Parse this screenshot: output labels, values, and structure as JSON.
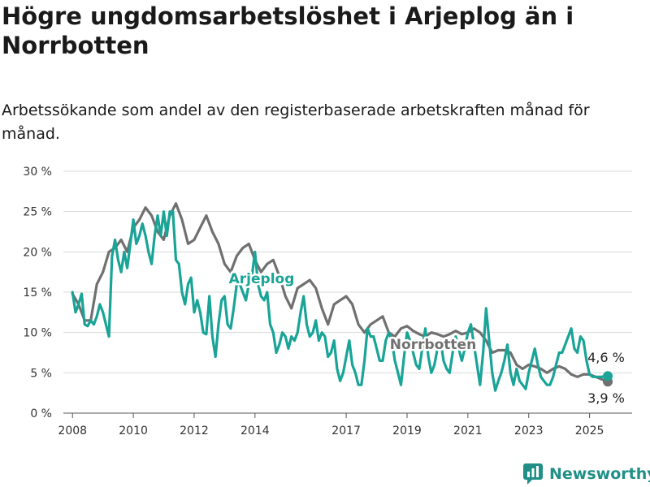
{
  "header": {
    "title": "Högre ungdomsarbetslöshet i Arjeplog än i Norrbotten",
    "subtitle": "Arbetssökande som andel av den registerbaserade arbetskraften månad för månad."
  },
  "brand": {
    "name": "Newsworthy",
    "icon": "bar-chart-logo-icon",
    "color": "#1f8f87"
  },
  "chart_data": {
    "type": "line",
    "x_unit": "year (decimal)",
    "xlim": [
      2007.7,
      2026.4
    ],
    "ylim": [
      0,
      30
    ],
    "grid": true,
    "y_ticks": [
      {
        "value": 0,
        "label": "0 %"
      },
      {
        "value": 5,
        "label": "5 %"
      },
      {
        "value": 10,
        "label": "10 %"
      },
      {
        "value": 15,
        "label": "15 %"
      },
      {
        "value": 20,
        "label": "20 %"
      },
      {
        "value": 25,
        "label": "25 %"
      },
      {
        "value": 30,
        "label": "30 %"
      }
    ],
    "x_ticks": [
      {
        "value": 2008,
        "label": "2008"
      },
      {
        "value": 2010,
        "label": "2010"
      },
      {
        "value": 2012,
        "label": "2012"
      },
      {
        "value": 2014,
        "label": "2014"
      },
      {
        "value": 2017,
        "label": "2017"
      },
      {
        "value": 2019,
        "label": "2019"
      },
      {
        "value": 2021,
        "label": "2021"
      },
      {
        "value": 2023,
        "label": "2023"
      },
      {
        "value": 2025,
        "label": "2025"
      }
    ],
    "series": [
      {
        "name": "Norrbotten",
        "color": "#707070",
        "end_label": "3,9 %",
        "points": [
          [
            2008.0,
            14.8
          ],
          [
            2008.2,
            13.5
          ],
          [
            2008.4,
            11.5
          ],
          [
            2008.6,
            11.5
          ],
          [
            2008.8,
            16.0
          ],
          [
            2009.0,
            17.5
          ],
          [
            2009.2,
            20.0
          ],
          [
            2009.4,
            20.5
          ],
          [
            2009.6,
            21.5
          ],
          [
            2009.8,
            20.0
          ],
          [
            2010.0,
            23.0
          ],
          [
            2010.2,
            24.0
          ],
          [
            2010.4,
            25.5
          ],
          [
            2010.6,
            24.5
          ],
          [
            2010.8,
            22.5
          ],
          [
            2011.0,
            21.5
          ],
          [
            2011.2,
            24.5
          ],
          [
            2011.4,
            26.0
          ],
          [
            2011.6,
            24.0
          ],
          [
            2011.8,
            21.0
          ],
          [
            2012.0,
            21.5
          ],
          [
            2012.2,
            23.0
          ],
          [
            2012.4,
            24.5
          ],
          [
            2012.6,
            22.5
          ],
          [
            2012.8,
            21.0
          ],
          [
            2013.0,
            18.5
          ],
          [
            2013.2,
            17.5
          ],
          [
            2013.4,
            19.5
          ],
          [
            2013.6,
            20.5
          ],
          [
            2013.8,
            21.0
          ],
          [
            2014.0,
            19.0
          ],
          [
            2014.2,
            17.5
          ],
          [
            2014.4,
            18.5
          ],
          [
            2014.6,
            19.0
          ],
          [
            2014.8,
            17.0
          ],
          [
            2015.0,
            14.5
          ],
          [
            2015.2,
            13.0
          ],
          [
            2015.4,
            15.5
          ],
          [
            2015.6,
            16.0
          ],
          [
            2015.8,
            16.5
          ],
          [
            2016.0,
            15.5
          ],
          [
            2016.2,
            13.0
          ],
          [
            2016.4,
            11.0
          ],
          [
            2016.6,
            13.5
          ],
          [
            2016.8,
            14.0
          ],
          [
            2017.0,
            14.5
          ],
          [
            2017.2,
            13.5
          ],
          [
            2017.4,
            11.0
          ],
          [
            2017.6,
            10.0
          ],
          [
            2017.8,
            11.0
          ],
          [
            2018.0,
            11.5
          ],
          [
            2018.2,
            12.0
          ],
          [
            2018.4,
            10.0
          ],
          [
            2018.6,
            9.5
          ],
          [
            2018.8,
            10.5
          ],
          [
            2019.0,
            10.8
          ],
          [
            2019.2,
            10.2
          ],
          [
            2019.4,
            9.8
          ],
          [
            2019.6,
            9.5
          ],
          [
            2019.8,
            10.0
          ],
          [
            2020.0,
            9.8
          ],
          [
            2020.2,
            9.5
          ],
          [
            2020.4,
            9.8
          ],
          [
            2020.6,
            10.2
          ],
          [
            2020.8,
            9.8
          ],
          [
            2021.0,
            10.0
          ],
          [
            2021.2,
            10.5
          ],
          [
            2021.4,
            10.0
          ],
          [
            2021.6,
            9.0
          ],
          [
            2021.8,
            7.5
          ],
          [
            2022.0,
            7.8
          ],
          [
            2022.2,
            7.8
          ],
          [
            2022.4,
            7.5
          ],
          [
            2022.6,
            6.0
          ],
          [
            2022.8,
            5.5
          ],
          [
            2023.0,
            6.0
          ],
          [
            2023.2,
            5.8
          ],
          [
            2023.4,
            5.5
          ],
          [
            2023.6,
            5.0
          ],
          [
            2023.8,
            5.5
          ],
          [
            2024.0,
            5.8
          ],
          [
            2024.2,
            5.5
          ],
          [
            2024.4,
            4.8
          ],
          [
            2024.6,
            4.5
          ],
          [
            2024.8,
            4.8
          ],
          [
            2025.0,
            4.8
          ],
          [
            2025.2,
            4.5
          ],
          [
            2025.4,
            4.2
          ],
          [
            2025.6,
            3.9
          ]
        ]
      },
      {
        "name": "Arjeplog",
        "color": "#19a497",
        "end_label": "4,6 %",
        "points": [
          [
            2008.0,
            15.0
          ],
          [
            2008.1,
            12.5
          ],
          [
            2008.2,
            13.5
          ],
          [
            2008.3,
            14.8
          ],
          [
            2008.4,
            11.0
          ],
          [
            2008.5,
            10.8
          ],
          [
            2008.6,
            11.5
          ],
          [
            2008.7,
            11.0
          ],
          [
            2008.8,
            12.0
          ],
          [
            2008.9,
            13.5
          ],
          [
            2009.0,
            12.5
          ],
          [
            2009.1,
            11.0
          ],
          [
            2009.2,
            9.5
          ],
          [
            2009.3,
            19.5
          ],
          [
            2009.4,
            21.5
          ],
          [
            2009.5,
            19.0
          ],
          [
            2009.6,
            17.5
          ],
          [
            2009.7,
            20.0
          ],
          [
            2009.8,
            18.0
          ],
          [
            2009.9,
            21.0
          ],
          [
            2010.0,
            24.0
          ],
          [
            2010.1,
            21.0
          ],
          [
            2010.2,
            22.0
          ],
          [
            2010.3,
            23.5
          ],
          [
            2010.4,
            22.0
          ],
          [
            2010.5,
            20.0
          ],
          [
            2010.6,
            18.5
          ],
          [
            2010.7,
            22.0
          ],
          [
            2010.8,
            24.5
          ],
          [
            2010.9,
            22.0
          ],
          [
            2011.0,
            25.0
          ],
          [
            2011.1,
            22.0
          ],
          [
            2011.2,
            25.0
          ],
          [
            2011.3,
            25.0
          ],
          [
            2011.4,
            19.0
          ],
          [
            2011.5,
            18.5
          ],
          [
            2011.6,
            15.0
          ],
          [
            2011.7,
            13.5
          ],
          [
            2011.8,
            16.0
          ],
          [
            2011.9,
            16.8
          ],
          [
            2012.0,
            12.5
          ],
          [
            2012.1,
            14.0
          ],
          [
            2012.2,
            12.5
          ],
          [
            2012.3,
            10.0
          ],
          [
            2012.4,
            9.8
          ],
          [
            2012.5,
            14.5
          ],
          [
            2012.6,
            9.5
          ],
          [
            2012.7,
            7.0
          ],
          [
            2012.8,
            11.0
          ],
          [
            2012.9,
            14.0
          ],
          [
            2013.0,
            14.5
          ],
          [
            2013.1,
            11.0
          ],
          [
            2013.2,
            10.5
          ],
          [
            2013.3,
            13.0
          ],
          [
            2013.4,
            16.0
          ],
          [
            2013.5,
            16.0
          ],
          [
            2013.6,
            15.0
          ],
          [
            2013.7,
            14.0
          ],
          [
            2013.8,
            16.0
          ],
          [
            2013.9,
            17.0
          ],
          [
            2014.0,
            20.0
          ],
          [
            2014.1,
            16.0
          ],
          [
            2014.2,
            14.5
          ],
          [
            2014.3,
            14.0
          ],
          [
            2014.4,
            15.0
          ],
          [
            2014.5,
            11.0
          ],
          [
            2014.6,
            10.0
          ],
          [
            2014.7,
            7.5
          ],
          [
            2014.8,
            8.5
          ],
          [
            2014.9,
            10.0
          ],
          [
            2015.0,
            9.5
          ],
          [
            2015.1,
            8.0
          ],
          [
            2015.2,
            9.5
          ],
          [
            2015.3,
            9.0
          ],
          [
            2015.4,
            10.0
          ],
          [
            2015.5,
            12.5
          ],
          [
            2015.6,
            14.5
          ],
          [
            2015.7,
            11.0
          ],
          [
            2015.8,
            9.5
          ],
          [
            2015.9,
            10.0
          ],
          [
            2016.0,
            11.5
          ],
          [
            2016.1,
            9.0
          ],
          [
            2016.2,
            10.0
          ],
          [
            2016.3,
            9.5
          ],
          [
            2016.4,
            7.0
          ],
          [
            2016.5,
            7.5
          ],
          [
            2016.6,
            9.0
          ],
          [
            2016.7,
            5.5
          ],
          [
            2016.8,
            4.0
          ],
          [
            2016.9,
            5.0
          ],
          [
            2017.0,
            7.0
          ],
          [
            2017.1,
            9.0
          ],
          [
            2017.2,
            6.0
          ],
          [
            2017.3,
            5.0
          ],
          [
            2017.4,
            3.5
          ],
          [
            2017.5,
            3.5
          ],
          [
            2017.6,
            6.5
          ],
          [
            2017.7,
            10.5
          ],
          [
            2017.8,
            9.5
          ],
          [
            2017.9,
            9.5
          ],
          [
            2018.0,
            8.0
          ],
          [
            2018.1,
            6.5
          ],
          [
            2018.2,
            6.5
          ],
          [
            2018.3,
            9.0
          ],
          [
            2018.4,
            10.0
          ],
          [
            2018.5,
            9.0
          ],
          [
            2018.6,
            6.5
          ],
          [
            2018.7,
            5.0
          ],
          [
            2018.8,
            3.5
          ],
          [
            2018.9,
            7.0
          ],
          [
            2019.0,
            10.0
          ],
          [
            2019.1,
            9.0
          ],
          [
            2019.2,
            7.5
          ],
          [
            2019.3,
            6.0
          ],
          [
            2019.4,
            5.5
          ],
          [
            2019.5,
            8.0
          ],
          [
            2019.6,
            10.5
          ],
          [
            2019.7,
            7.0
          ],
          [
            2019.8,
            5.0
          ],
          [
            2019.9,
            6.0
          ],
          [
            2020.0,
            8.0
          ],
          [
            2020.1,
            9.0
          ],
          [
            2020.2,
            6.5
          ],
          [
            2020.3,
            5.5
          ],
          [
            2020.4,
            5.0
          ],
          [
            2020.5,
            7.5
          ],
          [
            2020.6,
            9.5
          ],
          [
            2020.7,
            8.0
          ],
          [
            2020.8,
            6.5
          ],
          [
            2020.9,
            8.0
          ],
          [
            2021.0,
            10.0
          ],
          [
            2021.1,
            11.0
          ],
          [
            2021.2,
            8.5
          ],
          [
            2021.3,
            6.0
          ],
          [
            2021.4,
            3.5
          ],
          [
            2021.5,
            7.5
          ],
          [
            2021.6,
            13.0
          ],
          [
            2021.7,
            9.0
          ],
          [
            2021.8,
            5.0
          ],
          [
            2021.9,
            2.8
          ],
          [
            2022.0,
            4.0
          ],
          [
            2022.1,
            5.0
          ],
          [
            2022.2,
            6.5
          ],
          [
            2022.3,
            8.5
          ],
          [
            2022.4,
            5.0
          ],
          [
            2022.5,
            3.5
          ],
          [
            2022.6,
            5.5
          ],
          [
            2022.7,
            4.0
          ],
          [
            2022.8,
            3.5
          ],
          [
            2022.9,
            3.0
          ],
          [
            2023.0,
            5.0
          ],
          [
            2023.1,
            6.5
          ],
          [
            2023.2,
            8.0
          ],
          [
            2023.3,
            6.0
          ],
          [
            2023.4,
            4.5
          ],
          [
            2023.5,
            4.0
          ],
          [
            2023.6,
            3.5
          ],
          [
            2023.7,
            3.5
          ],
          [
            2023.8,
            4.5
          ],
          [
            2023.9,
            6.0
          ],
          [
            2024.0,
            7.5
          ],
          [
            2024.1,
            7.5
          ],
          [
            2024.2,
            8.5
          ],
          [
            2024.3,
            9.5
          ],
          [
            2024.4,
            10.5
          ],
          [
            2024.5,
            8.0
          ],
          [
            2024.6,
            7.5
          ],
          [
            2024.7,
            9.5
          ],
          [
            2024.8,
            9.0
          ],
          [
            2024.9,
            6.5
          ],
          [
            2025.0,
            4.8
          ],
          [
            2025.1,
            4.5
          ],
          [
            2025.2,
            4.5
          ],
          [
            2025.3,
            4.5
          ],
          [
            2025.4,
            4.5
          ],
          [
            2025.5,
            4.6
          ],
          [
            2025.6,
            4.6
          ]
        ]
      }
    ]
  }
}
